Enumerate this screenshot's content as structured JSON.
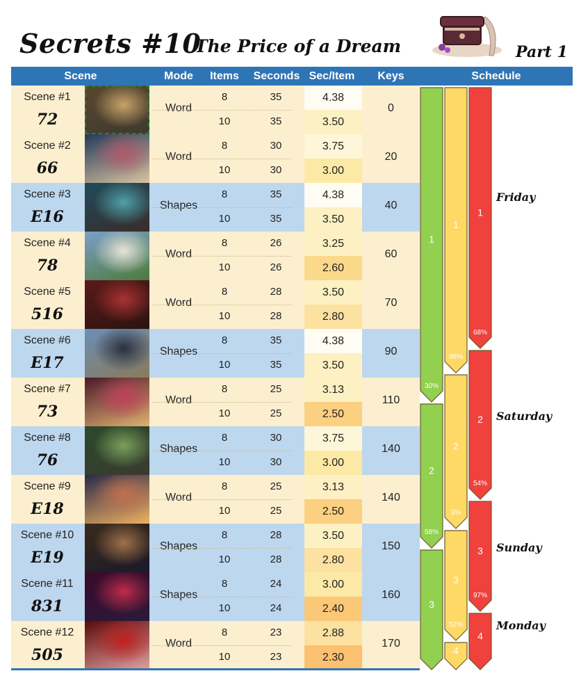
{
  "title": {
    "main": "Secrets #10",
    "subtitle": "The Price of a Dream",
    "part": "Part 1"
  },
  "headers": {
    "scene": "Scene",
    "mode": "Mode",
    "items": "Items",
    "seconds": "Seconds",
    "sec_item": "Sec/Item",
    "keys": "Keys",
    "schedule": "Schedule"
  },
  "rows": [
    {
      "label": "Scene #1",
      "code": "72",
      "mode": "Word",
      "items": [
        "8",
        "10"
      ],
      "seconds": [
        "35",
        "35"
      ],
      "sec_item": [
        "4.38",
        "3.50"
      ],
      "keys": "0",
      "rate_colors": [
        "#fefcf3",
        "#fdf0c2"
      ],
      "row_color": "cream",
      "selected": true,
      "thumb": [
        "#5a4630",
        "#c9a36a",
        "#3d3a2c"
      ]
    },
    {
      "label": "Scene #2",
      "code": "66",
      "mode": "Word",
      "items": [
        "8",
        "10"
      ],
      "seconds": [
        "30",
        "30"
      ],
      "sec_item": [
        "3.75",
        "3.00"
      ],
      "keys": "20",
      "rate_colors": [
        "#fdf6d8",
        "#fde9a6"
      ],
      "row_color": "cream",
      "selected": false,
      "thumb": [
        "#243a5a",
        "#b0596a",
        "#d8c3a0"
      ]
    },
    {
      "label": "Scene #3",
      "code": "E16",
      "mode": "Shapes",
      "items": [
        "8",
        "10"
      ],
      "seconds": [
        "35",
        "35"
      ],
      "sec_item": [
        "4.38",
        "3.50"
      ],
      "keys": "40",
      "rate_colors": [
        "#fefcf3",
        "#fdf0c2"
      ],
      "row_color": "blue",
      "selected": false,
      "thumb": [
        "#1f4a5a",
        "#4fa0a8",
        "#3a2c2a"
      ]
    },
    {
      "label": "Scene #4",
      "code": "78",
      "mode": "Word",
      "items": [
        "8",
        "10"
      ],
      "seconds": [
        "26",
        "26"
      ],
      "sec_item": [
        "3.25",
        "2.60"
      ],
      "keys": "60",
      "rate_colors": [
        "#fdf0c2",
        "#fbd98b"
      ],
      "row_color": "cream",
      "selected": false,
      "thumb": [
        "#7aa0c8",
        "#e9e4d8",
        "#4d7a3a"
      ]
    },
    {
      "label": "Scene #5",
      "code": "516",
      "mode": "Word",
      "items": [
        "8",
        "10"
      ],
      "seconds": [
        "28",
        "28"
      ],
      "sec_item": [
        "3.50",
        "2.80"
      ],
      "keys": "70",
      "rate_colors": [
        "#fdf0c2",
        "#fde1a0"
      ],
      "row_color": "cream",
      "selected": false,
      "thumb": [
        "#5a1a1a",
        "#a83232",
        "#2a1410"
      ]
    },
    {
      "label": "Scene #6",
      "code": "E17",
      "mode": "Shapes",
      "items": [
        "8",
        "10"
      ],
      "seconds": [
        "35",
        "35"
      ],
      "sec_item": [
        "4.38",
        "3.50"
      ],
      "keys": "90",
      "rate_colors": [
        "#fefcf3",
        "#fdf0c2"
      ],
      "row_color": "blue",
      "selected": false,
      "thumb": [
        "#6a8fb8",
        "#2a3040",
        "#8a7a5a"
      ]
    },
    {
      "label": "Scene #7",
      "code": "73",
      "mode": "Word",
      "items": [
        "8",
        "10"
      ],
      "seconds": [
        "25",
        "25"
      ],
      "sec_item": [
        "3.13",
        "2.50"
      ],
      "keys": "110",
      "rate_colors": [
        "#fdf0c2",
        "#fbd080"
      ],
      "row_color": "cream",
      "selected": false,
      "thumb": [
        "#4a1a2a",
        "#c0405a",
        "#e0b070"
      ]
    },
    {
      "label": "Scene #8",
      "code": "76",
      "mode": "Shapes",
      "items": [
        "8",
        "10"
      ],
      "seconds": [
        "30",
        "30"
      ],
      "sec_item": [
        "3.75",
        "3.00"
      ],
      "keys": "140",
      "rate_colors": [
        "#fdf6d8",
        "#fde9a6"
      ],
      "row_color": "blue",
      "selected": false,
      "thumb": [
        "#2a4a2a",
        "#7aa05a",
        "#3a3a30"
      ]
    },
    {
      "label": "Scene #9",
      "code": "E18",
      "mode": "Word",
      "items": [
        "8",
        "10"
      ],
      "seconds": [
        "25",
        "25"
      ],
      "sec_item": [
        "3.13",
        "2.50"
      ],
      "keys": "140",
      "rate_colors": [
        "#fdf0c2",
        "#fbd080"
      ],
      "row_color": "cream",
      "selected": false,
      "thumb": [
        "#2a2a4a",
        "#c07050",
        "#f0b060"
      ]
    },
    {
      "label": "Scene #10",
      "code": "E19",
      "mode": "Shapes",
      "items": [
        "8",
        "10"
      ],
      "seconds": [
        "28",
        "28"
      ],
      "sec_item": [
        "3.50",
        "2.80"
      ],
      "keys": "150",
      "rate_colors": [
        "#fdf0c2",
        "#fde1a0"
      ],
      "row_color": "blue",
      "selected": false,
      "thumb": [
        "#3a2a1a",
        "#a0704a",
        "#1a1a2a"
      ]
    },
    {
      "label": "Scene #11",
      "code": "831",
      "mode": "Shapes",
      "items": [
        "8",
        "10"
      ],
      "seconds": [
        "24",
        "24"
      ],
      "sec_item": [
        "3.00",
        "2.40"
      ],
      "keys": "160",
      "rate_colors": [
        "#fde9a6",
        "#fbc878"
      ],
      "row_color": "blue",
      "selected": false,
      "thumb": [
        "#3a0a2a",
        "#c02a4a",
        "#2a1a3a"
      ]
    },
    {
      "label": "Scene #12",
      "code": "505",
      "mode": "Word",
      "items": [
        "8",
        "10"
      ],
      "seconds": [
        "23",
        "23"
      ],
      "sec_item": [
        "2.88",
        "2.30"
      ],
      "keys": "170",
      "rate_colors": [
        "#fde1a0",
        "#fbc070"
      ],
      "row_color": "cream",
      "selected": false,
      "thumb": [
        "#5a0a0a",
        "#c02020",
        "#e0a0a0"
      ]
    }
  ],
  "schedule": {
    "green": [
      {
        "label": "1",
        "start_row": 0,
        "end_row": 6.5,
        "pct": "30%"
      },
      {
        "label": "2",
        "start_row": 6.5,
        "end_row": 9.5,
        "pct": "58%"
      },
      {
        "label": "3",
        "start_row": 9.5,
        "end_row": 12,
        "pct": ""
      }
    ],
    "yellow": [
      {
        "label": "1",
        "start_row": 0,
        "end_row": 5.9,
        "pct": "98%"
      },
      {
        "label": "2",
        "start_row": 5.9,
        "end_row": 9.1,
        "pct": "3%"
      },
      {
        "label": "3",
        "start_row": 9.1,
        "end_row": 11.4,
        "pct": "52%"
      },
      {
        "label": "4",
        "start_row": 11.4,
        "end_row": 12,
        "pct": ""
      }
    ],
    "red": [
      {
        "label": "1",
        "start_row": 0,
        "end_row": 5.4,
        "pct": "68%"
      },
      {
        "label": "2",
        "start_row": 5.4,
        "end_row": 8.5,
        "pct": "54%"
      },
      {
        "label": "3",
        "start_row": 8.5,
        "end_row": 10.8,
        "pct": "97%"
      },
      {
        "label": "4",
        "start_row": 10.8,
        "end_row": 12,
        "pct": ""
      }
    ],
    "colors": {
      "green": "#92d050",
      "yellow": "#ffd966",
      "red": "#f0413c"
    },
    "days": [
      {
        "name": "Friday",
        "row": 2.3
      },
      {
        "name": "Saturday",
        "row": 6.8
      },
      {
        "name": "Sunday",
        "row": 9.5
      },
      {
        "name": "Monday",
        "row": 11.1
      }
    ]
  },
  "colors": {
    "header": "#2e75b6",
    "cream": "#fcefcf",
    "blue": "#bdd7ee"
  }
}
